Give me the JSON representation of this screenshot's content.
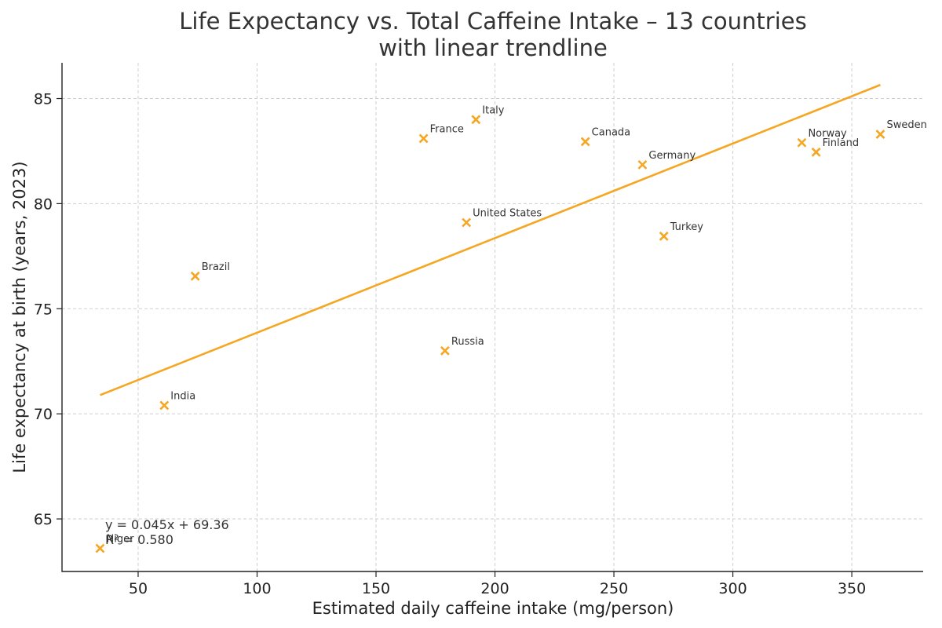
{
  "chart_data": {
    "type": "scatter",
    "title_lines": [
      "Life Expectancy vs. Total Caffeine Intake – 13 countries",
      "with linear trendline"
    ],
    "xlabel": "Estimated daily caffeine intake (mg/person)",
    "ylabel": "Life expectancy at birth (years, 2023)",
    "xlim": [
      18,
      380
    ],
    "ylim": [
      62.5,
      86.7
    ],
    "xticks": [
      50,
      100,
      150,
      200,
      250,
      300,
      350
    ],
    "yticks": [
      65,
      70,
      75,
      80,
      85
    ],
    "grid": true,
    "marker_color": "#F5A623",
    "trend_color": "#F5A623",
    "points": [
      {
        "label": "Niger",
        "x": 34,
        "y": 63.6
      },
      {
        "label": "India",
        "x": 61,
        "y": 70.4
      },
      {
        "label": "Brazil",
        "x": 74,
        "y": 76.55
      },
      {
        "label": "France",
        "x": 170,
        "y": 83.1
      },
      {
        "label": "Russia",
        "x": 179,
        "y": 73.0
      },
      {
        "label": "United States",
        "x": 188,
        "y": 79.1
      },
      {
        "label": "Italy",
        "x": 192,
        "y": 84.0
      },
      {
        "label": "Canada",
        "x": 238,
        "y": 82.95
      },
      {
        "label": "Germany",
        "x": 262,
        "y": 81.85
      },
      {
        "label": "Turkey",
        "x": 271,
        "y": 78.45
      },
      {
        "label": "Norway",
        "x": 329,
        "y": 82.9
      },
      {
        "label": "Finland",
        "x": 335,
        "y": 82.45
      },
      {
        "label": "Sweden",
        "x": 362,
        "y": 83.3
      }
    ],
    "trendline": {
      "slope": 0.045,
      "intercept": 69.36,
      "x_range": [
        34,
        362
      ]
    },
    "annotations": [
      "y = 0.045x + 69.36",
      "R² = 0.580"
    ]
  }
}
